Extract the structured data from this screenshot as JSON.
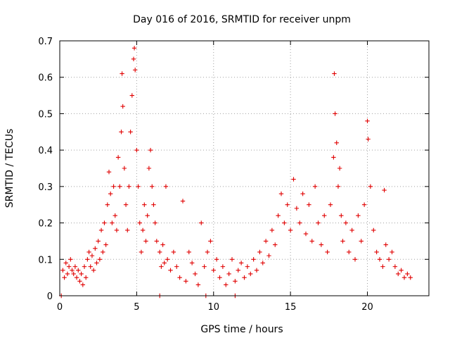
{
  "chart_data": {
    "type": "scatter",
    "title": "Day 016 of 2016, SRMTID for receiver unpm",
    "xlabel": "GPS time / hours",
    "ylabel": "SRMTID / TECUs",
    "xlim": [
      0,
      24
    ],
    "ylim": [
      0,
      0.7
    ],
    "xticks": [
      0,
      5,
      10,
      15,
      20
    ],
    "xtick_labels": [
      "0",
      "5",
      "10",
      "15",
      "20"
    ],
    "yticks": [
      0,
      0.1,
      0.2,
      0.3,
      0.4,
      0.5,
      0.6,
      0.7
    ],
    "ytick_labels": [
      "0",
      "0.1",
      "0.2",
      "0.3",
      "0.4",
      "0.5",
      "0.6",
      "0.7"
    ],
    "grid": true,
    "marker": "plus",
    "color": "#e00000",
    "series": [
      {
        "name": "SRMTID",
        "points": [
          [
            0.1,
            0.0
          ],
          [
            0.2,
            0.07
          ],
          [
            0.3,
            0.05
          ],
          [
            0.4,
            0.09
          ],
          [
            0.5,
            0.06
          ],
          [
            0.6,
            0.08
          ],
          [
            0.7,
            0.1
          ],
          [
            0.8,
            0.07
          ],
          [
            0.9,
            0.06
          ],
          [
            1.0,
            0.08
          ],
          [
            1.1,
            0.05
          ],
          [
            1.2,
            0.07
          ],
          [
            1.3,
            0.04
          ],
          [
            1.4,
            0.06
          ],
          [
            1.5,
            0.03
          ],
          [
            1.6,
            0.08
          ],
          [
            1.7,
            0.05
          ],
          [
            1.8,
            0.1
          ],
          [
            1.9,
            0.12
          ],
          [
            2.0,
            0.08
          ],
          [
            2.1,
            0.11
          ],
          [
            2.2,
            0.07
          ],
          [
            2.3,
            0.13
          ],
          [
            2.4,
            0.09
          ],
          [
            2.5,
            0.15
          ],
          [
            2.6,
            0.1
          ],
          [
            2.7,
            0.18
          ],
          [
            2.8,
            0.12
          ],
          [
            2.9,
            0.2
          ],
          [
            3.0,
            0.14
          ],
          [
            3.1,
            0.25
          ],
          [
            3.2,
            0.34
          ],
          [
            3.3,
            0.28
          ],
          [
            3.4,
            0.2
          ],
          [
            3.5,
            0.3
          ],
          [
            3.6,
            0.22
          ],
          [
            3.7,
            0.18
          ],
          [
            3.8,
            0.38
          ],
          [
            3.9,
            0.3
          ],
          [
            4.0,
            0.45
          ],
          [
            4.05,
            0.61
          ],
          [
            4.1,
            0.52
          ],
          [
            4.2,
            0.35
          ],
          [
            4.3,
            0.25
          ],
          [
            4.4,
            0.18
          ],
          [
            4.5,
            0.3
          ],
          [
            4.6,
            0.45
          ],
          [
            4.7,
            0.55
          ],
          [
            4.8,
            0.65
          ],
          [
            4.85,
            0.68
          ],
          [
            4.9,
            0.62
          ],
          [
            5.0,
            0.4
          ],
          [
            5.1,
            0.3
          ],
          [
            5.2,
            0.2
          ],
          [
            5.3,
            0.12
          ],
          [
            5.4,
            0.18
          ],
          [
            5.5,
            0.25
          ],
          [
            5.6,
            0.15
          ],
          [
            5.7,
            0.22
          ],
          [
            5.8,
            0.35
          ],
          [
            5.9,
            0.4
          ],
          [
            6.0,
            0.3
          ],
          [
            6.1,
            0.25
          ],
          [
            6.2,
            0.2
          ],
          [
            6.3,
            0.15
          ],
          [
            6.5,
            0.12
          ],
          [
            6.6,
            0.08
          ],
          [
            6.7,
            0.14
          ],
          [
            6.8,
            0.09
          ],
          [
            6.9,
            0.3
          ],
          [
            7.0,
            0.1
          ],
          [
            7.2,
            0.07
          ],
          [
            7.4,
            0.12
          ],
          [
            7.6,
            0.08
          ],
          [
            7.8,
            0.05
          ],
          [
            8.0,
            0.26
          ],
          [
            8.2,
            0.04
          ],
          [
            8.4,
            0.12
          ],
          [
            8.6,
            0.09
          ],
          [
            8.8,
            0.06
          ],
          [
            9.0,
            0.03
          ],
          [
            9.2,
            0.2
          ],
          [
            9.4,
            0.08
          ],
          [
            9.6,
            0.12
          ],
          [
            9.8,
            0.15
          ],
          [
            10.0,
            0.07
          ],
          [
            10.2,
            0.1
          ],
          [
            10.4,
            0.05
          ],
          [
            10.6,
            0.08
          ],
          [
            10.8,
            0.03
          ],
          [
            11.0,
            0.06
          ],
          [
            11.2,
            0.1
          ],
          [
            11.4,
            0.04
          ],
          [
            11.6,
            0.07
          ],
          [
            11.8,
            0.09
          ],
          [
            12.0,
            0.05
          ],
          [
            12.2,
            0.08
          ],
          [
            12.4,
            0.06
          ],
          [
            12.6,
            0.1
          ],
          [
            12.8,
            0.07
          ],
          [
            13.0,
            0.12
          ],
          [
            13.2,
            0.09
          ],
          [
            13.4,
            0.15
          ],
          [
            13.6,
            0.11
          ],
          [
            13.8,
            0.18
          ],
          [
            14.0,
            0.14
          ],
          [
            14.2,
            0.22
          ],
          [
            14.4,
            0.28
          ],
          [
            14.6,
            0.2
          ],
          [
            14.8,
            0.25
          ],
          [
            15.0,
            0.18
          ],
          [
            15.2,
            0.32
          ],
          [
            15.4,
            0.24
          ],
          [
            15.6,
            0.2
          ],
          [
            15.8,
            0.28
          ],
          [
            16.0,
            0.17
          ],
          [
            16.2,
            0.25
          ],
          [
            16.4,
            0.15
          ],
          [
            16.6,
            0.3
          ],
          [
            16.8,
            0.2
          ],
          [
            17.0,
            0.14
          ],
          [
            17.2,
            0.22
          ],
          [
            17.4,
            0.12
          ],
          [
            17.6,
            0.25
          ],
          [
            17.8,
            0.38
          ],
          [
            17.85,
            0.61
          ],
          [
            17.9,
            0.5
          ],
          [
            18.0,
            0.42
          ],
          [
            18.1,
            0.3
          ],
          [
            18.2,
            0.35
          ],
          [
            18.3,
            0.22
          ],
          [
            18.4,
            0.15
          ],
          [
            18.6,
            0.2
          ],
          [
            18.8,
            0.12
          ],
          [
            19.0,
            0.18
          ],
          [
            19.2,
            0.1
          ],
          [
            19.4,
            0.22
          ],
          [
            19.6,
            0.15
          ],
          [
            19.8,
            0.25
          ],
          [
            20.0,
            0.48
          ],
          [
            20.05,
            0.43
          ],
          [
            20.2,
            0.3
          ],
          [
            20.4,
            0.18
          ],
          [
            20.6,
            0.12
          ],
          [
            20.8,
            0.1
          ],
          [
            21.0,
            0.08
          ],
          [
            21.1,
            0.29
          ],
          [
            21.2,
            0.14
          ],
          [
            21.4,
            0.1
          ],
          [
            21.6,
            0.12
          ],
          [
            21.8,
            0.08
          ],
          [
            22.0,
            0.06
          ],
          [
            22.2,
            0.07
          ],
          [
            22.4,
            0.05
          ],
          [
            22.6,
            0.06
          ],
          [
            22.8,
            0.05
          ],
          [
            6.5,
            0.0
          ],
          [
            9.5,
            0.0
          ],
          [
            11.4,
            0.0
          ]
        ]
      }
    ]
  }
}
